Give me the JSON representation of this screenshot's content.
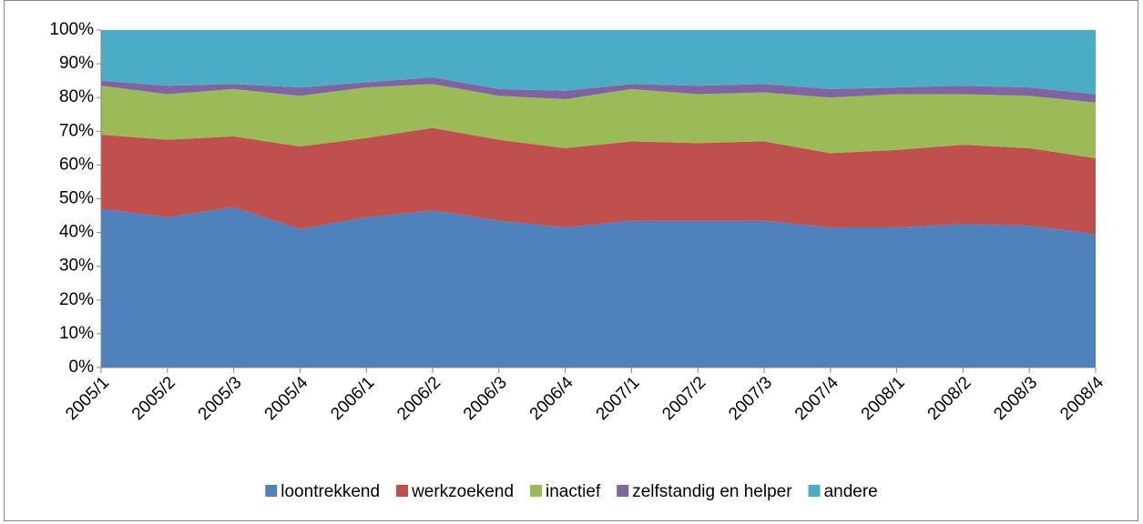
{
  "chart_data": {
    "type": "stacked_area",
    "categories": [
      "2005/1",
      "2005/2",
      "2005/3",
      "2005/4",
      "2006/1",
      "2006/2",
      "2006/3",
      "2006/4",
      "2007/1",
      "2007/2",
      "2007/3",
      "2007/4",
      "2008/1",
      "2008/2",
      "2008/3",
      "2008/4"
    ],
    "series": [
      {
        "name": "loontrekkend",
        "color": "#4f81bd",
        "values": [
          47,
          44.5,
          47.5,
          41,
          44.5,
          46.5,
          43.5,
          41.5,
          43.5,
          43.5,
          43.5,
          41.5,
          41.5,
          42.5,
          42,
          39.5
        ]
      },
      {
        "name": "werkzoekend",
        "color": "#c0504d",
        "values": [
          22,
          23,
          21,
          24.5,
          23.5,
          24.5,
          24,
          23.5,
          23.5,
          23,
          23.5,
          22,
          23,
          23.5,
          23,
          22.5
        ]
      },
      {
        "name": "inactief",
        "color": "#9bbb59",
        "values": [
          14.5,
          13.5,
          14,
          15,
          15,
          13,
          13,
          14.5,
          15.5,
          14.5,
          14.5,
          16.5,
          16.5,
          15,
          15.5,
          16.5
        ]
      },
      {
        "name": "zelfstandig en helper",
        "color": "#8064a2",
        "values": [
          1.5,
          2.5,
          1.5,
          2.5,
          1.5,
          2,
          2,
          2.5,
          1.5,
          2.5,
          2.5,
          2.5,
          2,
          2.5,
          2.5,
          2.5
        ]
      },
      {
        "name": "andere",
        "color": "#4bacc6",
        "values": [
          15,
          16.5,
          16,
          17,
          15.5,
          14,
          17.5,
          18,
          16,
          16.5,
          16,
          17.5,
          17,
          16.5,
          17,
          19
        ]
      }
    ],
    "ylim": [
      0,
      100
    ],
    "yticks": [
      {
        "value": 0,
        "label": "0%"
      },
      {
        "value": 10,
        "label": "10%"
      },
      {
        "value": 20,
        "label": "20%"
      },
      {
        "value": 30,
        "label": "30%"
      },
      {
        "value": 40,
        "label": "40%"
      },
      {
        "value": 50,
        "label": "50%"
      },
      {
        "value": 60,
        "label": "60%"
      },
      {
        "value": 70,
        "label": "70%"
      },
      {
        "value": 80,
        "label": "80%"
      },
      {
        "value": 90,
        "label": "90%"
      },
      {
        "value": 100,
        "label": "100%"
      }
    ],
    "legend": "bottom"
  }
}
